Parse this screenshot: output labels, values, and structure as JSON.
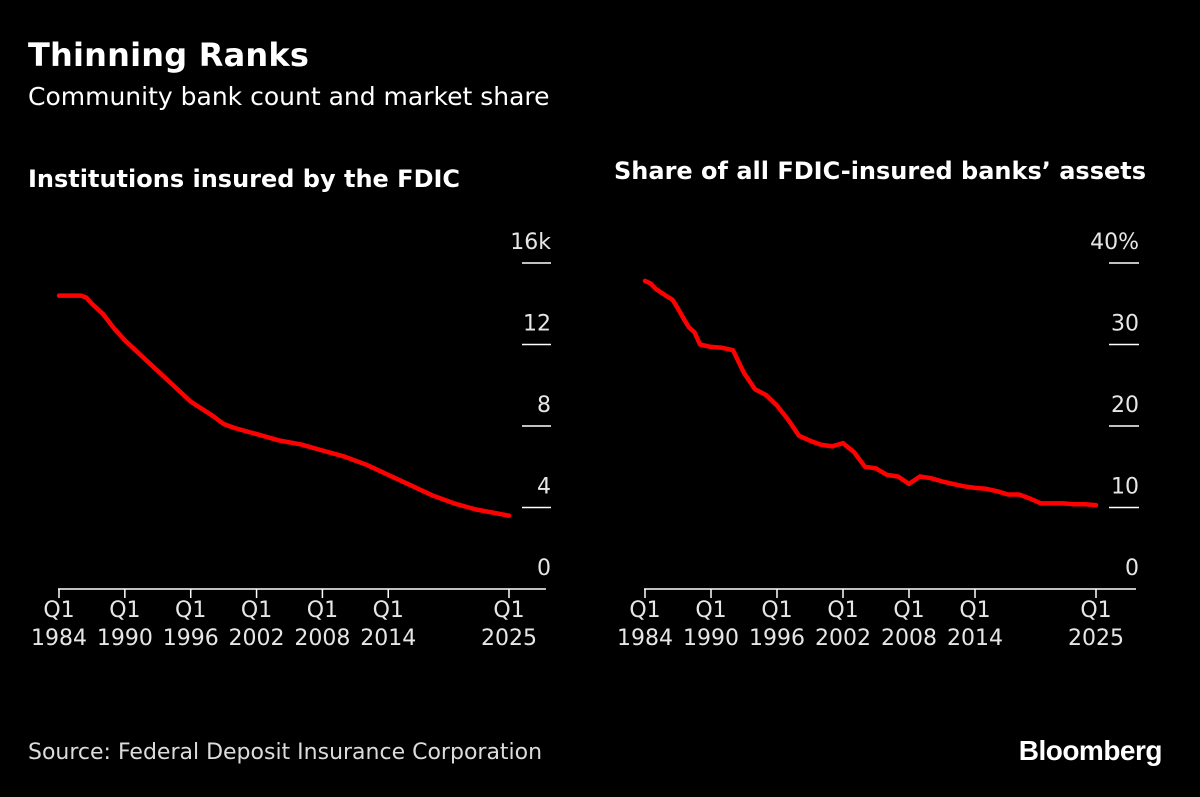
{
  "header": {
    "title": "Thinning Ranks",
    "subtitle": "Community bank count and market share"
  },
  "footer": {
    "source": "Source: Federal Deposit Insurance Corporation",
    "logo": "Bloomberg"
  },
  "colors": {
    "line": "#ff0000",
    "background": "#000000",
    "axis": "#ffffff"
  },
  "chart_data": [
    {
      "type": "line",
      "title": "Institutions insured by the FDIC",
      "ylim": [
        0,
        16
      ],
      "yticks": [
        {
          "value": 0,
          "label": "0"
        },
        {
          "value": 4,
          "label": "4"
        },
        {
          "value": 8,
          "label": "8"
        },
        {
          "value": 12,
          "label": "12"
        },
        {
          "value": 16,
          "label": "16k"
        }
      ],
      "xlim": [
        1984,
        2025
      ],
      "xticks": [
        {
          "value": 1984,
          "line1": "Q1",
          "line2": "1984"
        },
        {
          "value": 1990,
          "line1": "Q1",
          "line2": "1990"
        },
        {
          "value": 1996,
          "line1": "Q1",
          "line2": "1996"
        },
        {
          "value": 2002,
          "line1": "Q1",
          "line2": "2002"
        },
        {
          "value": 2008,
          "line1": "Q1",
          "line2": "2008"
        },
        {
          "value": 2014,
          "line1": "Q1",
          "line2": "2014"
        },
        {
          "value": 2025,
          "line1": "Q1",
          "line2": "2025"
        }
      ],
      "x": [
        1984,
        1985,
        1986,
        1986.5,
        1987,
        1988,
        1989,
        1990,
        1992,
        1994,
        1996,
        1998,
        1999,
        2000,
        2002,
        2004,
        2006,
        2008,
        2010,
        2012,
        2014,
        2016,
        2018,
        2020,
        2022,
        2024,
        2025
      ],
      "y": [
        14.4,
        14.4,
        14.4,
        14.3,
        14.0,
        13.5,
        12.8,
        12.2,
        11.2,
        10.2,
        9.2,
        8.5,
        8.1,
        7.9,
        7.6,
        7.3,
        7.1,
        6.8,
        6.5,
        6.1,
        5.6,
        5.1,
        4.6,
        4.2,
        3.9,
        3.7,
        3.6
      ]
    },
    {
      "type": "line",
      "title": "Share of all FDIC-insured banks’ assets",
      "ylim": [
        0,
        40
      ],
      "yticks": [
        {
          "value": 0,
          "label": "0"
        },
        {
          "value": 10,
          "label": "10"
        },
        {
          "value": 20,
          "label": "20"
        },
        {
          "value": 30,
          "label": "30"
        },
        {
          "value": 40,
          "label": "40%"
        }
      ],
      "xlim": [
        1984,
        2025
      ],
      "xticks": [
        {
          "value": 1984,
          "line1": "Q1",
          "line2": "1984"
        },
        {
          "value": 1990,
          "line1": "Q1",
          "line2": "1990"
        },
        {
          "value": 1996,
          "line1": "Q1",
          "line2": "1996"
        },
        {
          "value": 2002,
          "line1": "Q1",
          "line2": "2002"
        },
        {
          "value": 2008,
          "line1": "Q1",
          "line2": "2008"
        },
        {
          "value": 2014,
          "line1": "Q1",
          "line2": "2014"
        },
        {
          "value": 2025,
          "line1": "Q1",
          "line2": "2025"
        }
      ],
      "x": [
        1984,
        1984.5,
        1985,
        1986,
        1986.5,
        1987,
        1987.5,
        1988,
        1988.5,
        1989,
        1990,
        1991,
        1992,
        1993,
        1994,
        1995,
        1996,
        1997,
        1998,
        1999,
        2000,
        2001,
        2002,
        2003,
        2004,
        2005,
        2006,
        2007,
        2008,
        2009,
        2010,
        2011,
        2012,
        2013,
        2014,
        2015,
        2016,
        2017,
        2018,
        2019,
        2020,
        2021,
        2022,
        2023,
        2024,
        2025
      ],
      "y": [
        37.8,
        37.5,
        36.8,
        35.9,
        35.5,
        34.4,
        33.2,
        32.1,
        31.5,
        30.0,
        29.7,
        29.6,
        29.3,
        26.5,
        24.5,
        23.8,
        22.5,
        20.8,
        18.8,
        18.2,
        17.7,
        17.5,
        17.9,
        16.8,
        15.0,
        14.8,
        14.0,
        13.8,
        12.9,
        13.8,
        13.6,
        13.2,
        12.9,
        12.6,
        12.4,
        12.3,
        12.0,
        11.6,
        11.6,
        11.1,
        10.5,
        10.5,
        10.5,
        10.4,
        10.4,
        10.3
      ]
    }
  ]
}
